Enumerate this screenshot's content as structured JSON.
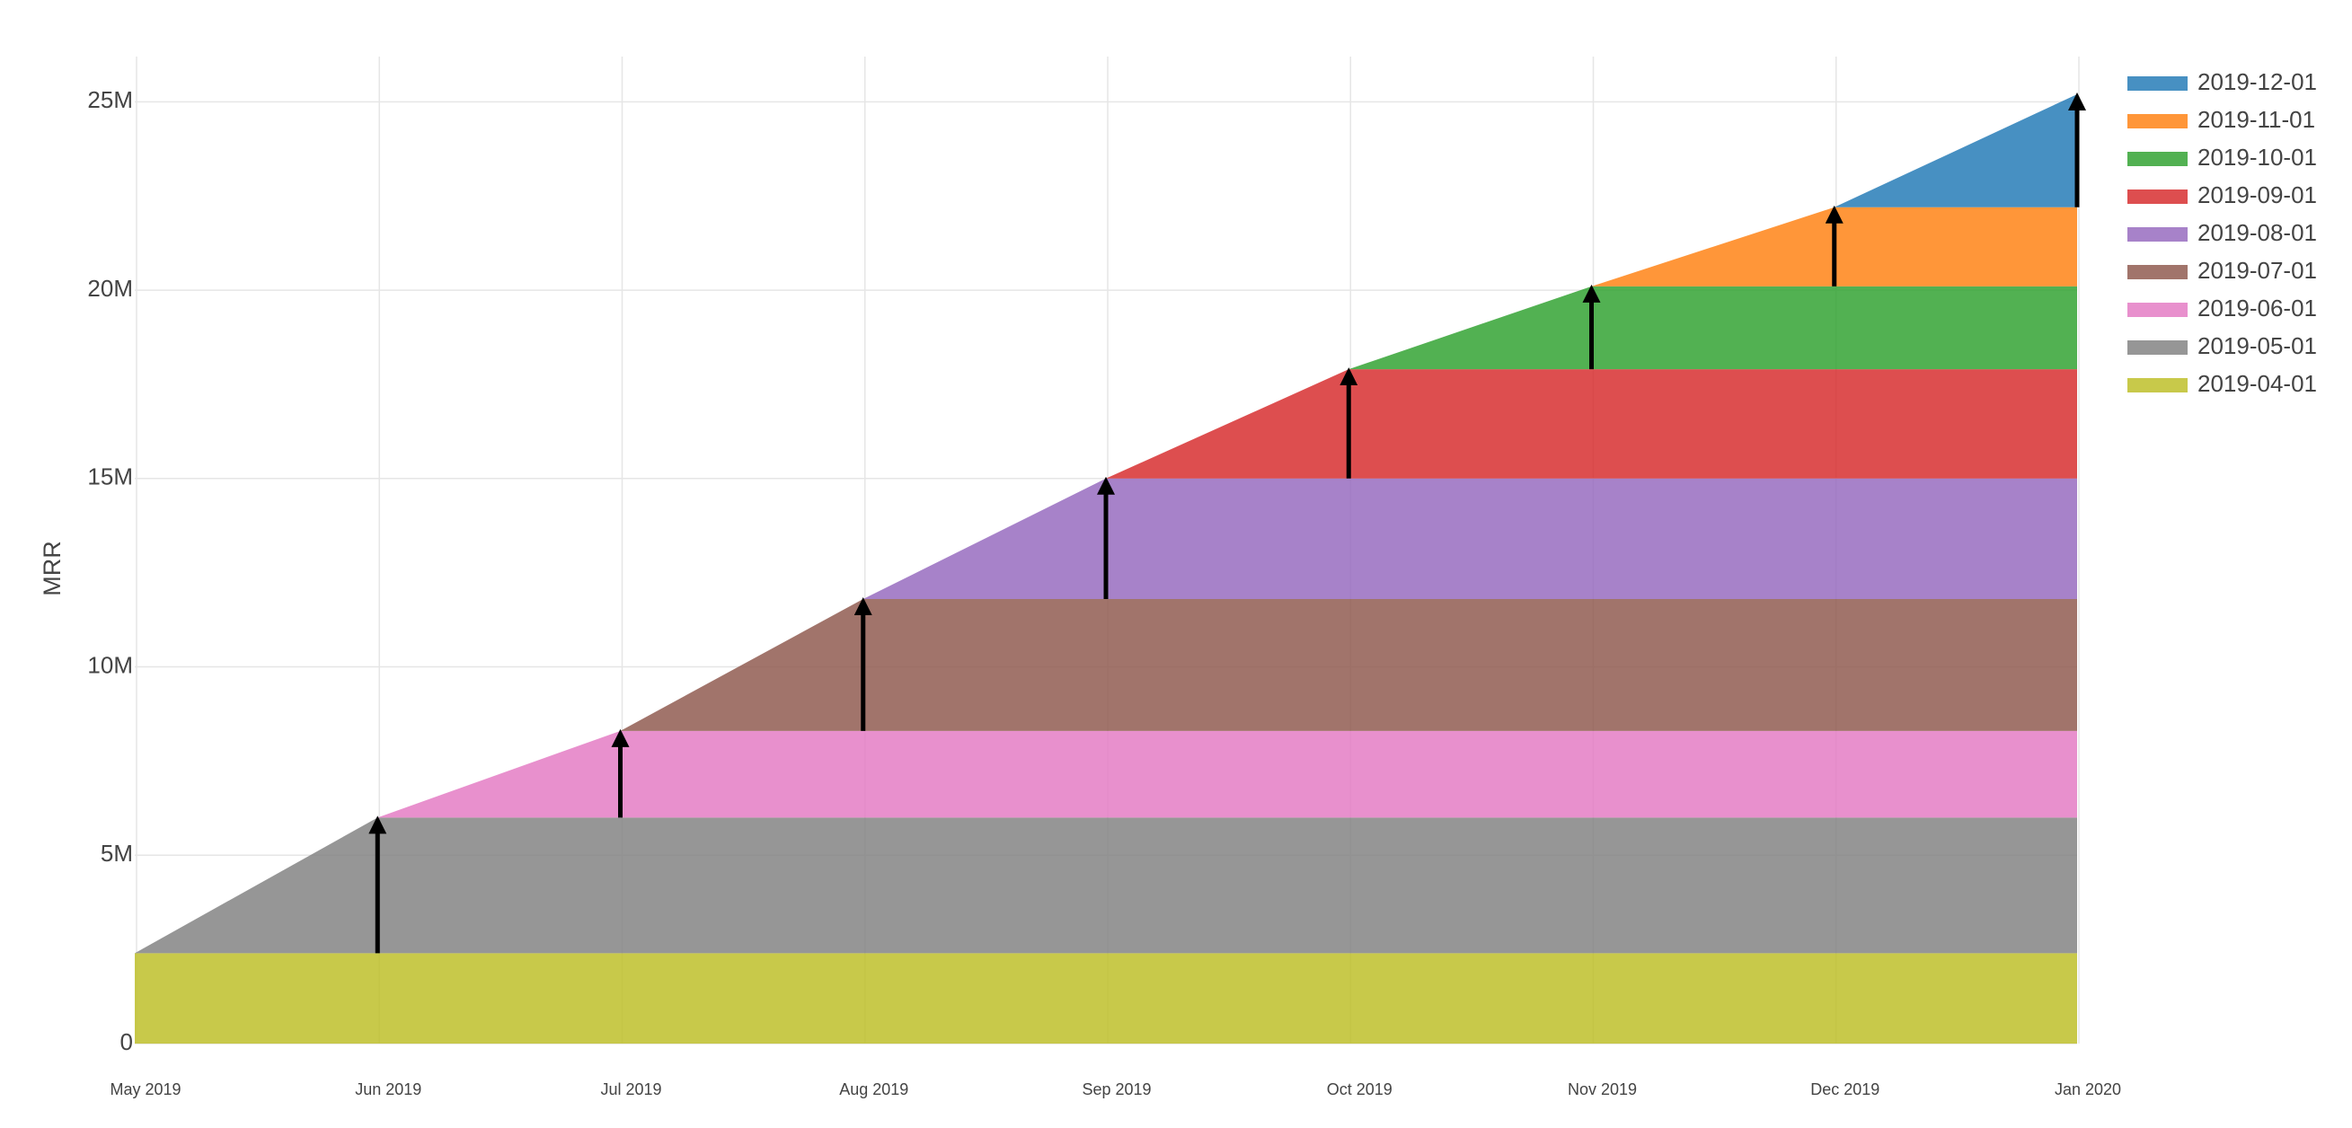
{
  "chart_data": {
    "type": "stacked-area",
    "y_label": "MRR",
    "x": [
      "May 2019",
      "Jun 2019",
      "Jul 2019",
      "Aug 2019",
      "Sep 2019",
      "Oct 2019",
      "Nov 2019",
      "Dec 2019",
      "Jan 2020"
    ],
    "ylim": [
      0,
      26200000
    ],
    "yticks": [
      0,
      {
        "value": 5000000,
        "label": "5M"
      },
      {
        "value": 10000000,
        "label": "10M"
      },
      {
        "value": 15000000,
        "label": "15M"
      },
      {
        "value": 20000000,
        "label": "20M"
      },
      {
        "value": 25000000,
        "label": "25M"
      }
    ],
    "grid": true,
    "legend": "right",
    "series": [
      {
        "name": "2019-04-01",
        "color": "#bcbd22",
        "values": [
          2400000,
          2400000,
          2400000,
          2400000,
          2400000,
          2400000,
          2400000,
          2400000,
          2400000
        ]
      },
      {
        "name": "2019-05-01",
        "color": "#7f7f7f",
        "values": [
          0,
          3600000,
          3600000,
          3600000,
          3600000,
          3600000,
          3600000,
          3600000,
          3600000
        ]
      },
      {
        "name": "2019-06-01",
        "color": "#e377c2",
        "values": [
          0,
          0,
          2300000,
          2300000,
          2300000,
          2300000,
          2300000,
          2300000,
          2300000
        ]
      },
      {
        "name": "2019-07-01",
        "color": "#8c564b",
        "values": [
          0,
          0,
          0,
          3500000,
          3500000,
          3500000,
          3500000,
          3500000,
          3500000
        ]
      },
      {
        "name": "2019-08-01",
        "color": "#9467bd",
        "values": [
          0,
          0,
          0,
          0,
          3200000,
          3200000,
          3200000,
          3200000,
          3200000
        ]
      },
      {
        "name": "2019-09-01",
        "color": "#d62728",
        "values": [
          0,
          0,
          0,
          0,
          0,
          2900000,
          2900000,
          2900000,
          2900000
        ]
      },
      {
        "name": "2019-10-01",
        "color": "#2ca02c",
        "values": [
          0,
          0,
          0,
          0,
          0,
          0,
          2200000,
          2200000,
          2200000
        ]
      },
      {
        "name": "2019-11-01",
        "color": "#ff7f0e",
        "values": [
          0,
          0,
          0,
          0,
          0,
          0,
          0,
          2100000,
          2100000
        ]
      },
      {
        "name": "2019-12-01",
        "color": "#1f77b4",
        "values": [
          0,
          0,
          0,
          0,
          0,
          0,
          0,
          0,
          3000000
        ]
      }
    ]
  }
}
